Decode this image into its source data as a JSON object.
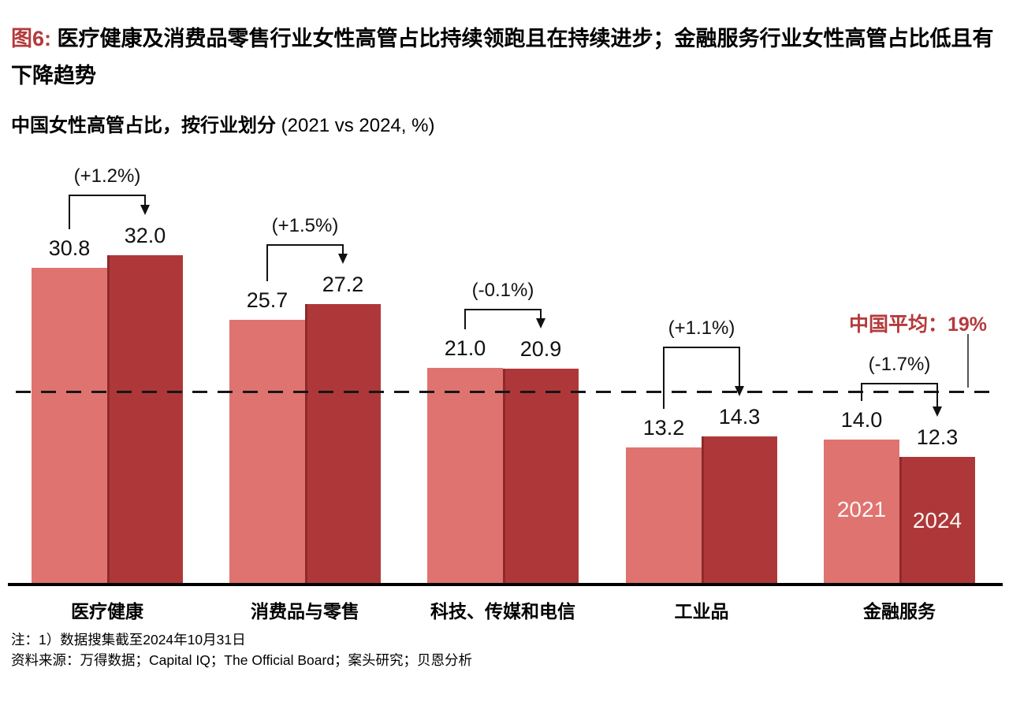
{
  "figure": {
    "label": "图6:",
    "title": " 医疗健康及消费品零售行业女性高管占比持续领跑且在持续进步；金融服务行业女性高管占比低且有下降趋势",
    "subtitle_cn": "中国女性高管占比，按行业划分 ",
    "subtitle_paren": "(2021 vs 2024, %)"
  },
  "chart_data": {
    "type": "bar",
    "categories": [
      "医疗健康",
      "消费品与零售",
      "科技、传媒和电信",
      "工业品",
      "金融服务"
    ],
    "series": [
      {
        "name": "2021",
        "values": [
          30.8,
          25.7,
          21.0,
          13.2,
          14.0
        ]
      },
      {
        "name": "2024",
        "values": [
          32.0,
          27.2,
          20.9,
          14.3,
          12.3
        ]
      }
    ],
    "annotations": [
      "(+1.2%)",
      "(+1.5%)",
      "(-0.1%)",
      "(+1.1%)",
      "(-1.7%)"
    ],
    "reference_line": {
      "label": "中国平均：",
      "value_text": "19%",
      "value": 19
    },
    "inbar_series_labels": {
      "group_index": 4,
      "left": "2021",
      "right": "2024"
    },
    "ylim": [
      0,
      35
    ],
    "legend_position": "in-bar-last-group",
    "grid": false,
    "colors": {
      "bar_2021": "#DF7370",
      "bar_2024": "#AE3839",
      "accent_red": "#B53A3C",
      "axis": "#000000"
    }
  },
  "notes": {
    "note1": "注：1）数据搜集截至2024年10月31日",
    "source": "资料来源：万得数据；Capital IQ；The Official Board；案头研究；贝恩分析"
  }
}
